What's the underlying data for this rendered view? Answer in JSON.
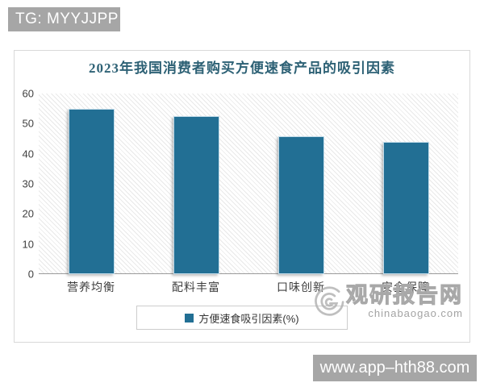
{
  "overlay": {
    "tg_label": "TG: MYYJJPP",
    "site_label": "www.app–hth88.com"
  },
  "chart_data": {
    "type": "bar",
    "title": "2023年我国消费者购买方便速食产品的吸引因素",
    "categories": [
      "营养均衡",
      "配料丰富",
      "口味创新",
      "安全保障"
    ],
    "values": [
      55,
      52.4,
      45.7,
      44
    ],
    "series_name": "方便速食吸引因素(%)",
    "ylim": [
      0,
      60
    ],
    "yticks": [
      0,
      10,
      20,
      30,
      40,
      50,
      60
    ],
    "bar_color": "#226f94",
    "title_color": "#2d6175",
    "grid": false,
    "plot_background": "diagonal-hatch",
    "legend_position": "bottom"
  },
  "watermark": {
    "logo": "swirl-logo",
    "name": "观研报告网",
    "domain": "chinabaogao.com"
  }
}
